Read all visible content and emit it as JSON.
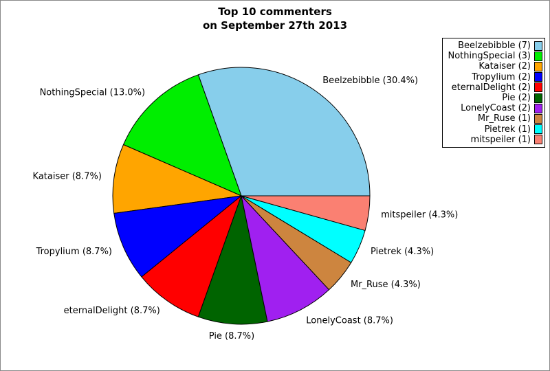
{
  "chart_data": {
    "type": "pie",
    "title_line1": "Top 10 commenters",
    "title_line2": "on September 27th 2013",
    "total_comments": 23,
    "direction": "counterclockwise",
    "start_angle_deg": 0,
    "legend_position": "upper-right",
    "background_color": "#FFFFFF",
    "series": [
      {
        "name": "Beelzebibble",
        "count": 7,
        "percent": 30.4,
        "color": "#87CEEB",
        "slice_label": "Beelzebibble (30.4%)",
        "legend_label": "Beelzebibble (7)"
      },
      {
        "name": "NothingSpecial",
        "count": 3,
        "percent": 13.0,
        "color": "#00EE00",
        "slice_label": "NothingSpecial (13.0%)",
        "legend_label": "NothingSpecial (3)"
      },
      {
        "name": "Kataiser",
        "count": 2,
        "percent": 8.7,
        "color": "#FFA500",
        "slice_label": "Kataiser (8.7%)",
        "legend_label": "Kataiser (2)"
      },
      {
        "name": "Tropylium",
        "count": 2,
        "percent": 8.7,
        "color": "#0000FF",
        "slice_label": "Tropylium (8.7%)",
        "legend_label": "Tropylium (2)"
      },
      {
        "name": "eternalDelight",
        "count": 2,
        "percent": 8.7,
        "color": "#FF0000",
        "slice_label": "eternalDelight (8.7%)",
        "legend_label": "eternalDelight (2)"
      },
      {
        "name": "Pie",
        "count": 2,
        "percent": 8.7,
        "color": "#006400",
        "slice_label": "Pie (8.7%)",
        "legend_label": "Pie (2)"
      },
      {
        "name": "LonelyCoast",
        "count": 2,
        "percent": 8.7,
        "color": "#A020F0",
        "slice_label": "LonelyCoast (8.7%)",
        "legend_label": "LonelyCoast (2)"
      },
      {
        "name": "Mr_Ruse",
        "count": 1,
        "percent": 4.3,
        "color": "#CD853F",
        "slice_label": "Mr_Ruse (4.3%)",
        "legend_label": "Mr_Ruse (1)"
      },
      {
        "name": "Pietrek",
        "count": 1,
        "percent": 4.3,
        "color": "#00FFFF",
        "slice_label": "Pietrek (4.3%)",
        "legend_label": "Pietrek (1)"
      },
      {
        "name": "mitspeiler",
        "count": 1,
        "percent": 4.3,
        "color": "#FA8072",
        "slice_label": "mitspeiler (4.3%)",
        "legend_label": "mitspeiler (1)"
      }
    ]
  }
}
